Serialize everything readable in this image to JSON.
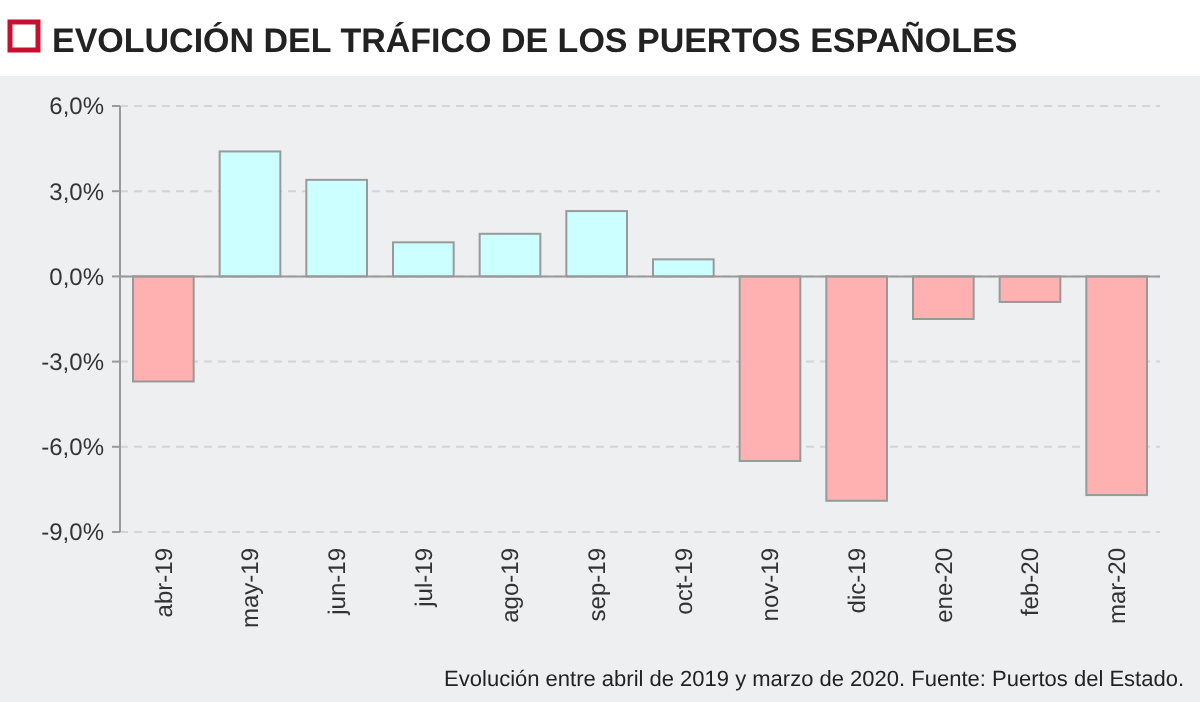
{
  "chart_data": {
    "type": "bar",
    "title": "EVOLUCIÓN DEL TRÁFICO DE LOS PUERTOS ESPAÑOLES",
    "categories": [
      "abr-19",
      "may-19",
      "jun-19",
      "jul-19",
      "ago-19",
      "sep-19",
      "oct-19",
      "nov-19",
      "dic-19",
      "ene-20",
      "feb-20",
      "mar-20"
    ],
    "values": [
      -3.7,
      4.4,
      3.4,
      1.2,
      1.5,
      2.3,
      0.6,
      -6.5,
      -7.9,
      -1.5,
      -0.9,
      -7.7
    ],
    "colors": [
      "#ffb0b0",
      "#ccffff",
      "#ccffff",
      "#ccffff",
      "#ccffff",
      "#ccffff",
      "#ccffff",
      "#ffb0b0",
      "#ffb0b0",
      "#ffb0b0",
      "#ffb0b0",
      "#ffb0b0"
    ],
    "ylim": [
      -9,
      6
    ],
    "yticks": [
      {
        "value": -9,
        "label": "-9,0%"
      },
      {
        "value": -6,
        "label": "-6,0%"
      },
      {
        "value": -3,
        "label": "-3,0%"
      },
      {
        "value": 0,
        "label": "0,0%"
      },
      {
        "value": 3,
        "label": "3,0%"
      },
      {
        "value": 6,
        "label": "6,0%"
      }
    ],
    "grid": "y",
    "annotations": [
      "Evolución entre abril de 2019 y marzo de 2020. Fuente: Puertos del Estado."
    ]
  }
}
